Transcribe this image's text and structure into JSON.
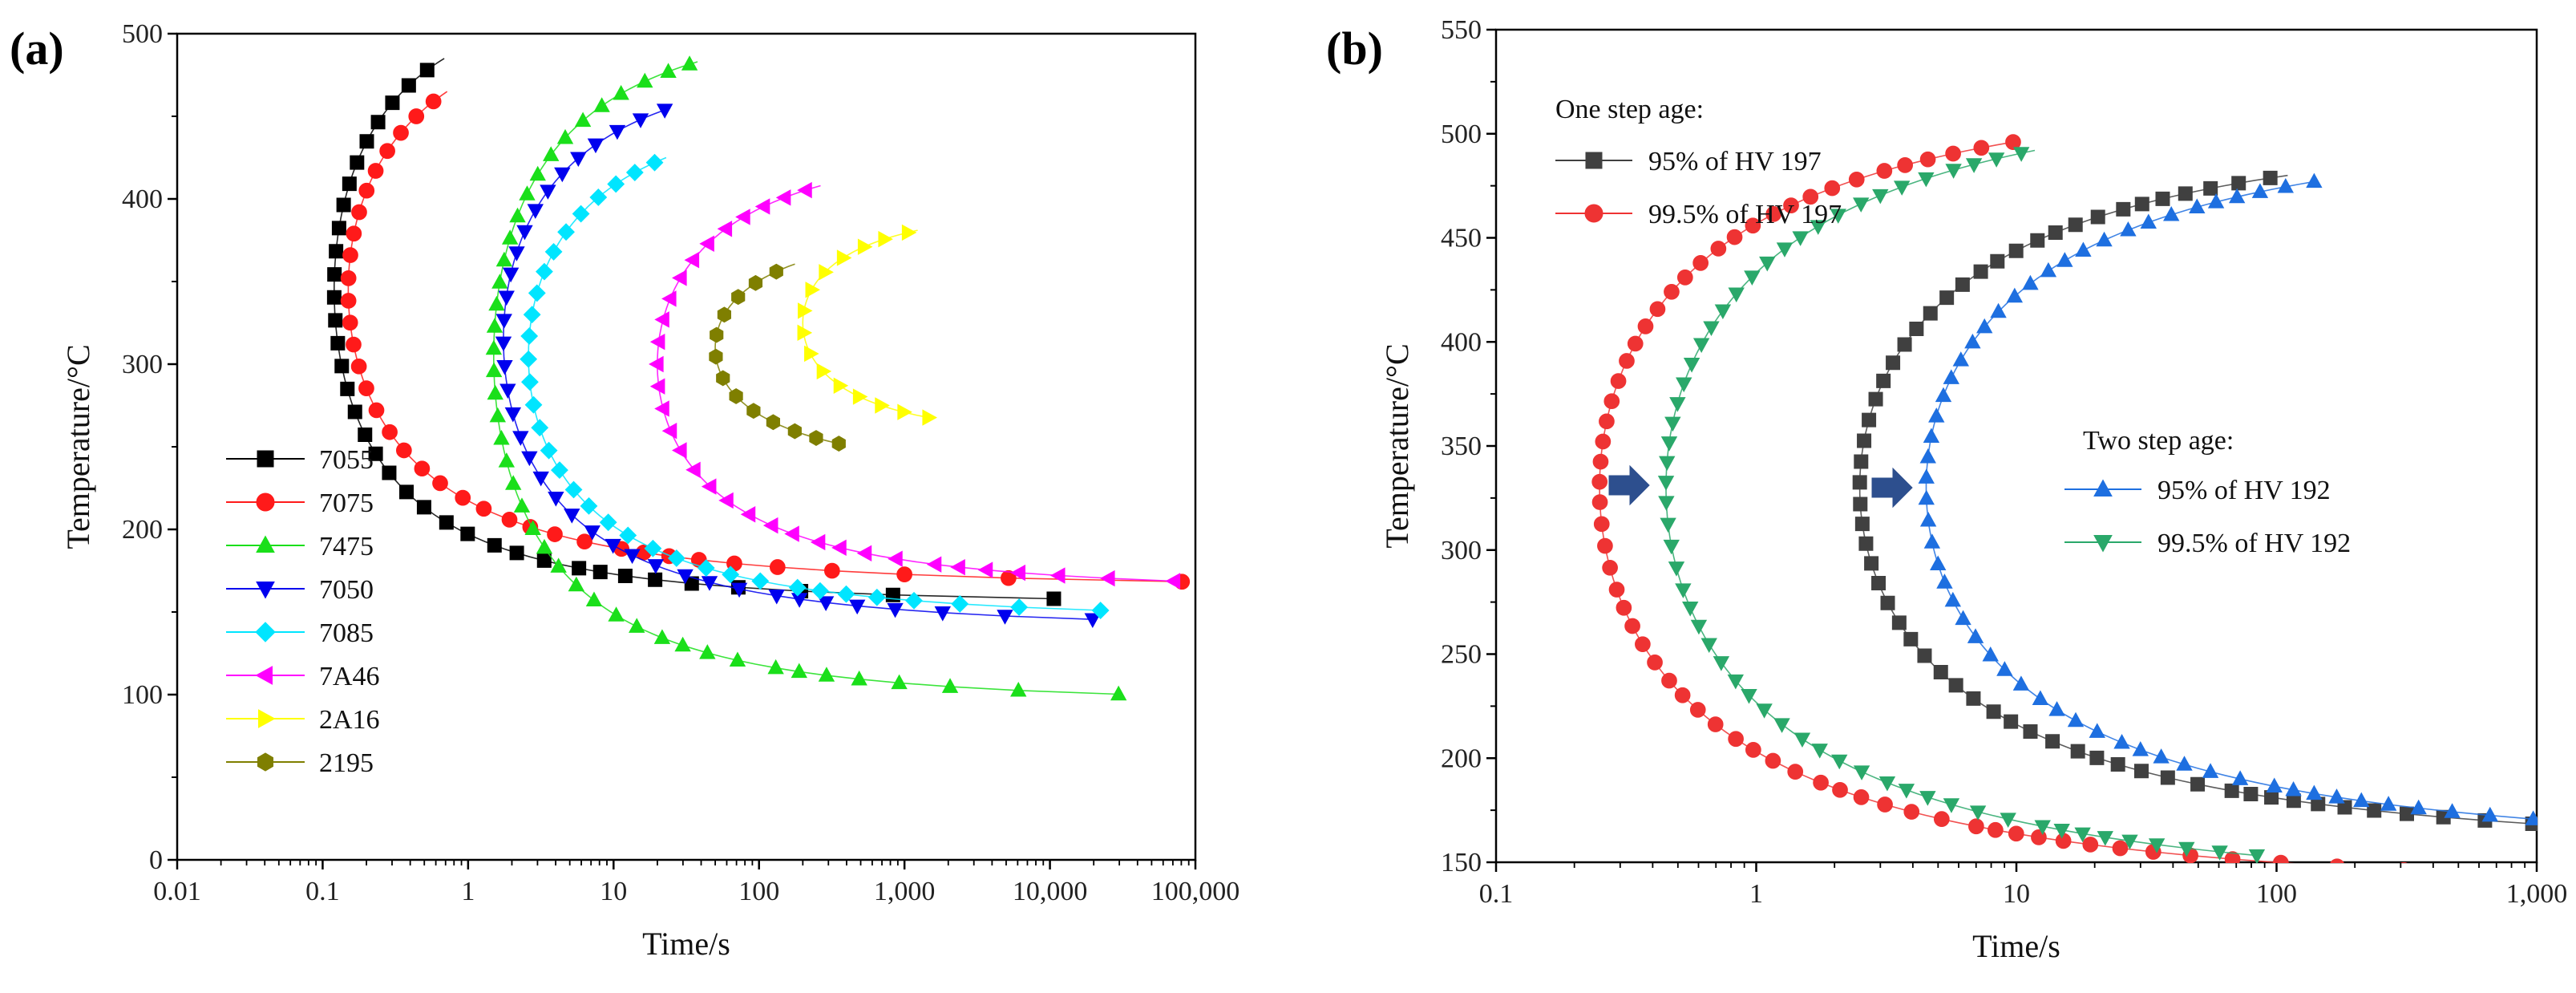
{
  "chart_data": [
    {
      "panel": "(a)",
      "type": "scatter",
      "xscale": "log",
      "xlim": [
        0.01,
        100000
      ],
      "ylim": [
        0,
        500
      ],
      "xlabel": "Time/s",
      "ylabel": "Temperature/°C",
      "xticks": [
        0.01,
        0.1,
        1,
        10,
        100,
        1000,
        10000,
        100000
      ],
      "xtick_labels": [
        "0.01",
        "0.1",
        "1",
        "10",
        "100",
        "1,000",
        "10,000",
        "100,000"
      ],
      "yticks": [
        0,
        100,
        200,
        300,
        400,
        500
      ],
      "legend_position": "bottom-left",
      "series": [
        {
          "name": "7055",
          "color": "#000000",
          "marker": "square",
          "nose_time": 0.12,
          "nose_temp": 345,
          "upper_temp": 455,
          "lower_temp": 98,
          "t_min": 80,
          "t_max": 460,
          "steepness": 0.85,
          "upper_end_time": 100000,
          "lower_end_time": 100000
        },
        {
          "name": "7075",
          "color": "#ff1a1a",
          "marker": "circle",
          "nose_time": 0.15,
          "nose_temp": 345,
          "upper_temp": 435,
          "lower_temp": 110,
          "t_min": 80,
          "t_max": 440,
          "steepness": 1.05,
          "upper_end_time": 100000,
          "lower_end_time": 100000
        },
        {
          "name": "7475",
          "color": "#1adf1a",
          "marker": "triangle-up",
          "nose_time": 1.5,
          "nose_temp": 305,
          "upper_temp": 453,
          "lower_temp": 62,
          "t_min": 40,
          "t_max": 460,
          "steepness": 0.9,
          "upper_end_time": 100000,
          "lower_end_time": 100000
        },
        {
          "name": "7050",
          "color": "#0000ee",
          "marker": "triangle-down",
          "nose_time": 1.75,
          "nose_temp": 315,
          "upper_temp": 425,
          "lower_temp": 100,
          "t_min": 80,
          "t_max": 430,
          "steepness": 0.95,
          "upper_end_time": 100000,
          "lower_end_time": 100000
        },
        {
          "name": "7085",
          "color": "#00e5ff",
          "marker": "diamond",
          "nose_time": 2.6,
          "nose_temp": 305,
          "upper_temp": 395,
          "lower_temp": 98,
          "t_min": 80,
          "t_max": 400,
          "steepness": 1.0,
          "upper_end_time": 100000,
          "lower_end_time": 100000
        },
        {
          "name": "7A46",
          "color": "#ff00ff",
          "marker": "triangle-left",
          "nose_time": 20,
          "nose_temp": 300,
          "upper_temp": 378,
          "lower_temp": 128,
          "t_min": 110,
          "t_max": 385,
          "steepness": 1.0,
          "upper_end_time": 100000,
          "lower_end_time": 100000
        },
        {
          "name": "2A16",
          "color": "#ffff00",
          "marker": "triangle-right",
          "nose_time": 200,
          "nose_temp": 325,
          "upper_temp": 375,
          "lower_temp": 275,
          "t_min": 250,
          "t_max": 395,
          "steepness": 0.75,
          "upper_end_time": 1200,
          "lower_end_time": 1500
        },
        {
          "name": "2195",
          "color": "#7f7f00",
          "marker": "hexagon",
          "nose_time": 50,
          "nose_temp": 310,
          "upper_temp": 372,
          "lower_temp": 258,
          "t_min": 235,
          "t_max": 390,
          "steepness": 0.9,
          "upper_end_time": 170,
          "lower_end_time": 350
        }
      ]
    },
    {
      "panel": "(b)",
      "type": "scatter",
      "xscale": "log",
      "xlim": [
        0.1,
        1000
      ],
      "ylim": [
        150,
        550
      ],
      "xlabel": "Time/s",
      "ylabel": "Temperature/°C",
      "xticks": [
        0.1,
        1,
        10,
        100,
        1000
      ],
      "xtick_labels": [
        "0.1",
        "1",
        "10",
        "100",
        "1,000"
      ],
      "yticks": [
        150,
        200,
        250,
        300,
        350,
        400,
        450,
        500,
        550
      ],
      "legend_groups": [
        {
          "title": "One step age:",
          "position": "top-left",
          "entries": [
            "95% of HV 197",
            "99.5% of HV 197"
          ]
        },
        {
          "title": "Two step age:",
          "position": "center-right",
          "entries": [
            "95% of HV 192",
            "99.5% of HV 192"
          ]
        }
      ],
      "annotations": [
        "right-arrow near 99.5% of HV 197 nose",
        "right-arrow near 95% of HV 197 nose"
      ],
      "series": [
        {
          "name": "95% of HV 197",
          "group": "One step age:",
          "color": "#404040",
          "marker": "square",
          "nose_time": 2.5,
          "nose_temp": 330,
          "upper_temp": 450,
          "lower_temp": 170,
          "t_min": 120,
          "t_max": 470,
          "steepness": 1.0,
          "upper_end_time": 1000,
          "lower_end_time": 1000
        },
        {
          "name": "99.5% of HV 197",
          "group": "One step age:",
          "color": "#ee3333",
          "marker": "circle",
          "nose_time": 0.25,
          "nose_temp": 330,
          "upper_temp": 466,
          "lower_temp": 150,
          "t_min": 100,
          "t_max": 490,
          "steepness": 1.0,
          "upper_end_time": 1000,
          "lower_end_time": 600
        },
        {
          "name": "95% of HV 192",
          "group": "Two step age:",
          "color": "#1e6fe0",
          "marker": "triangle-up",
          "nose_time": 4.5,
          "nose_temp": 330,
          "upper_temp": 447,
          "lower_temp": 150,
          "t_min": 120,
          "t_max": 470,
          "steepness": 1.0,
          "upper_end_time": 1000,
          "lower_end_time": 1000
        },
        {
          "name": "99.5% of HV 192",
          "group": "Two step age:",
          "color": "#2aa86a",
          "marker": "triangle-down",
          "nose_time": 0.45,
          "nose_temp": 330,
          "upper_temp": 462,
          "lower_temp": 150,
          "t_min": 90,
          "t_max": 480,
          "steepness": 1.0,
          "upper_end_time": 1000,
          "lower_end_time": 100
        }
      ]
    }
  ]
}
